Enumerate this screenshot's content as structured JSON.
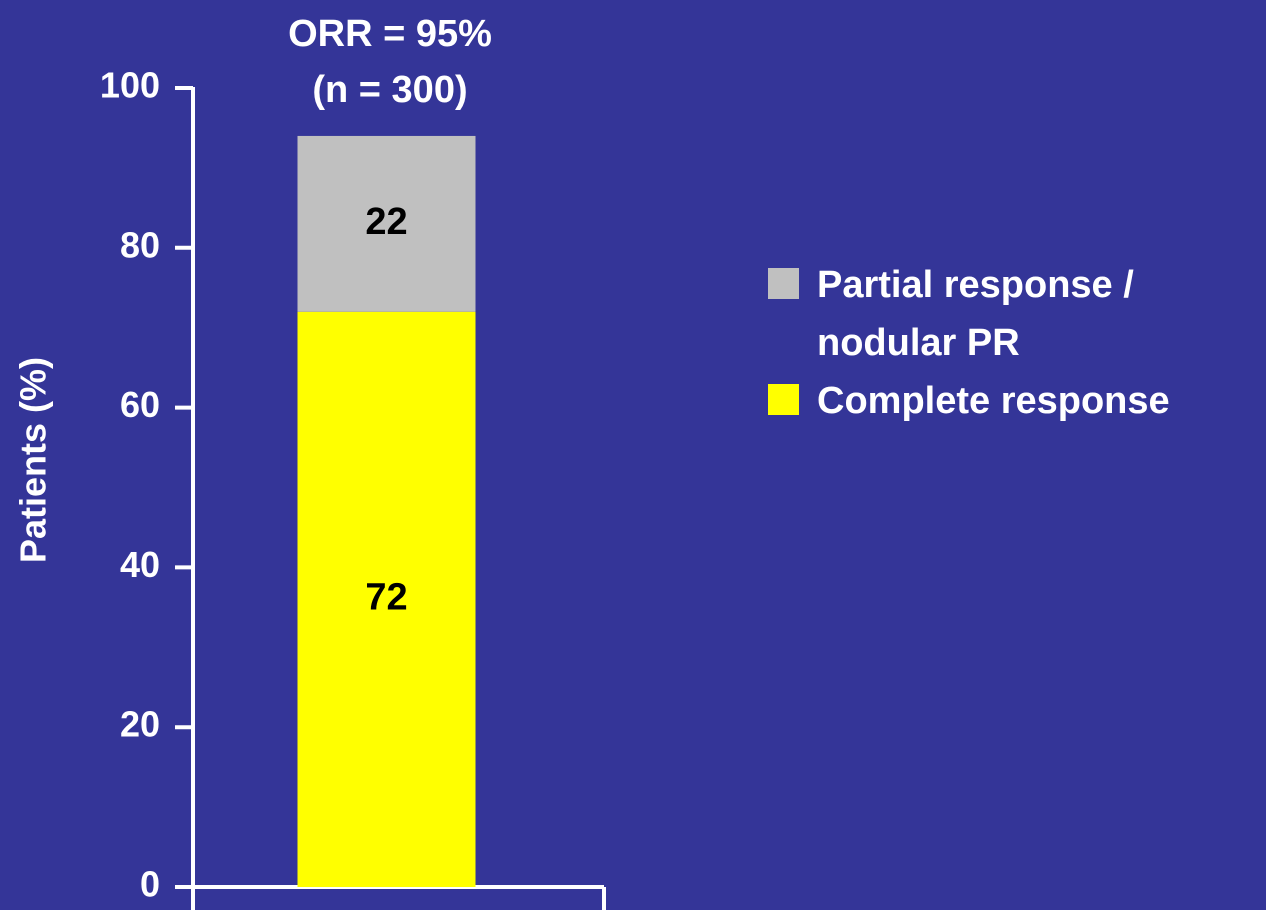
{
  "chart_data": {
    "type": "bar",
    "stacked": true,
    "title": "ORR = 95%",
    "subtitle": "(n = 300)",
    "y_label": "Patients (%)",
    "categories": [
      null
    ],
    "series": [
      {
        "name": "Complete response",
        "color": "#ffff00",
        "values": [
          72
        ]
      },
      {
        "name": "Partial response / nodular PR",
        "color": "#c0c0c0",
        "values": [
          22
        ]
      }
    ],
    "ylim": [
      0,
      100
    ],
    "yticks": [
      0,
      20,
      40,
      60,
      80,
      100
    ],
    "legend": "right"
  }
}
